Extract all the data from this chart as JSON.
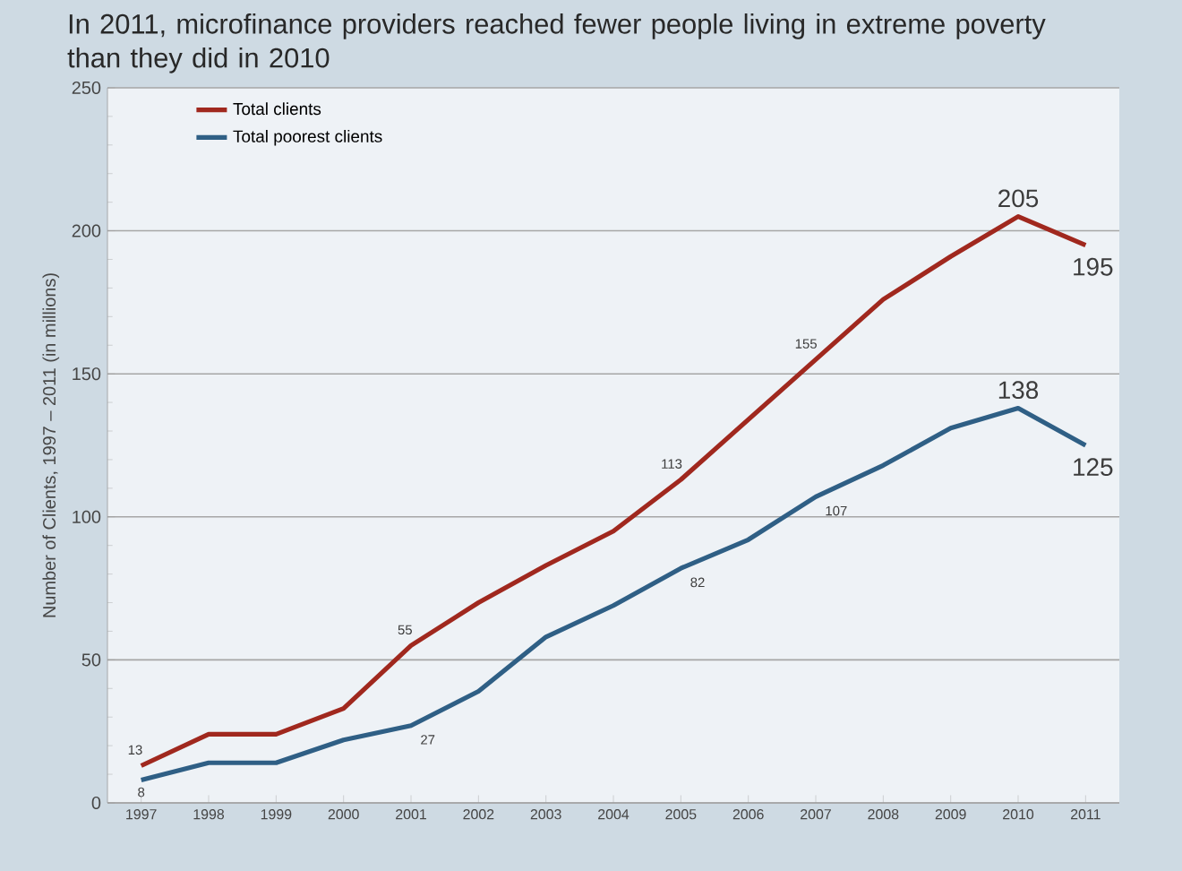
{
  "chart_data": {
    "type": "line",
    "title": "In 2011, microfinance providers reached fewer people living in extreme poverty than they did in 2010",
    "ylabel": "Number of Clients, 1997 – 2011 (in millions)",
    "categories": [
      "1997",
      "1998",
      "1999",
      "2000",
      "2001",
      "2002",
      "2003",
      "2004",
      "2005",
      "2006",
      "2007",
      "2008",
      "2009",
      "2010",
      "2011"
    ],
    "series": [
      {
        "name": "Total clients",
        "color": "#a0281e",
        "values": [
          13,
          24,
          24,
          33,
          55,
          70,
          83,
          95,
          113,
          134,
          155,
          176,
          191,
          205,
          195
        ],
        "value_labels": [
          "13",
          null,
          null,
          null,
          "55",
          null,
          null,
          null,
          "113",
          null,
          "155",
          null,
          null,
          "205",
          "195"
        ]
      },
      {
        "name": "Total poorest clients",
        "color": "#2f5f85",
        "values": [
          8,
          14,
          14,
          22,
          27,
          39,
          58,
          69,
          82,
          92,
          107,
          118,
          131,
          138,
          125
        ],
        "value_labels": [
          "8",
          null,
          null,
          null,
          "27",
          null,
          null,
          null,
          "82",
          null,
          "107",
          null,
          null,
          "138",
          "125"
        ]
      }
    ],
    "ylim": [
      0,
      250
    ],
    "yticks": [
      0,
      50,
      100,
      150,
      200,
      250
    ],
    "grid": "y",
    "legend": "top left",
    "marker": "none",
    "line_style": "solid"
  }
}
